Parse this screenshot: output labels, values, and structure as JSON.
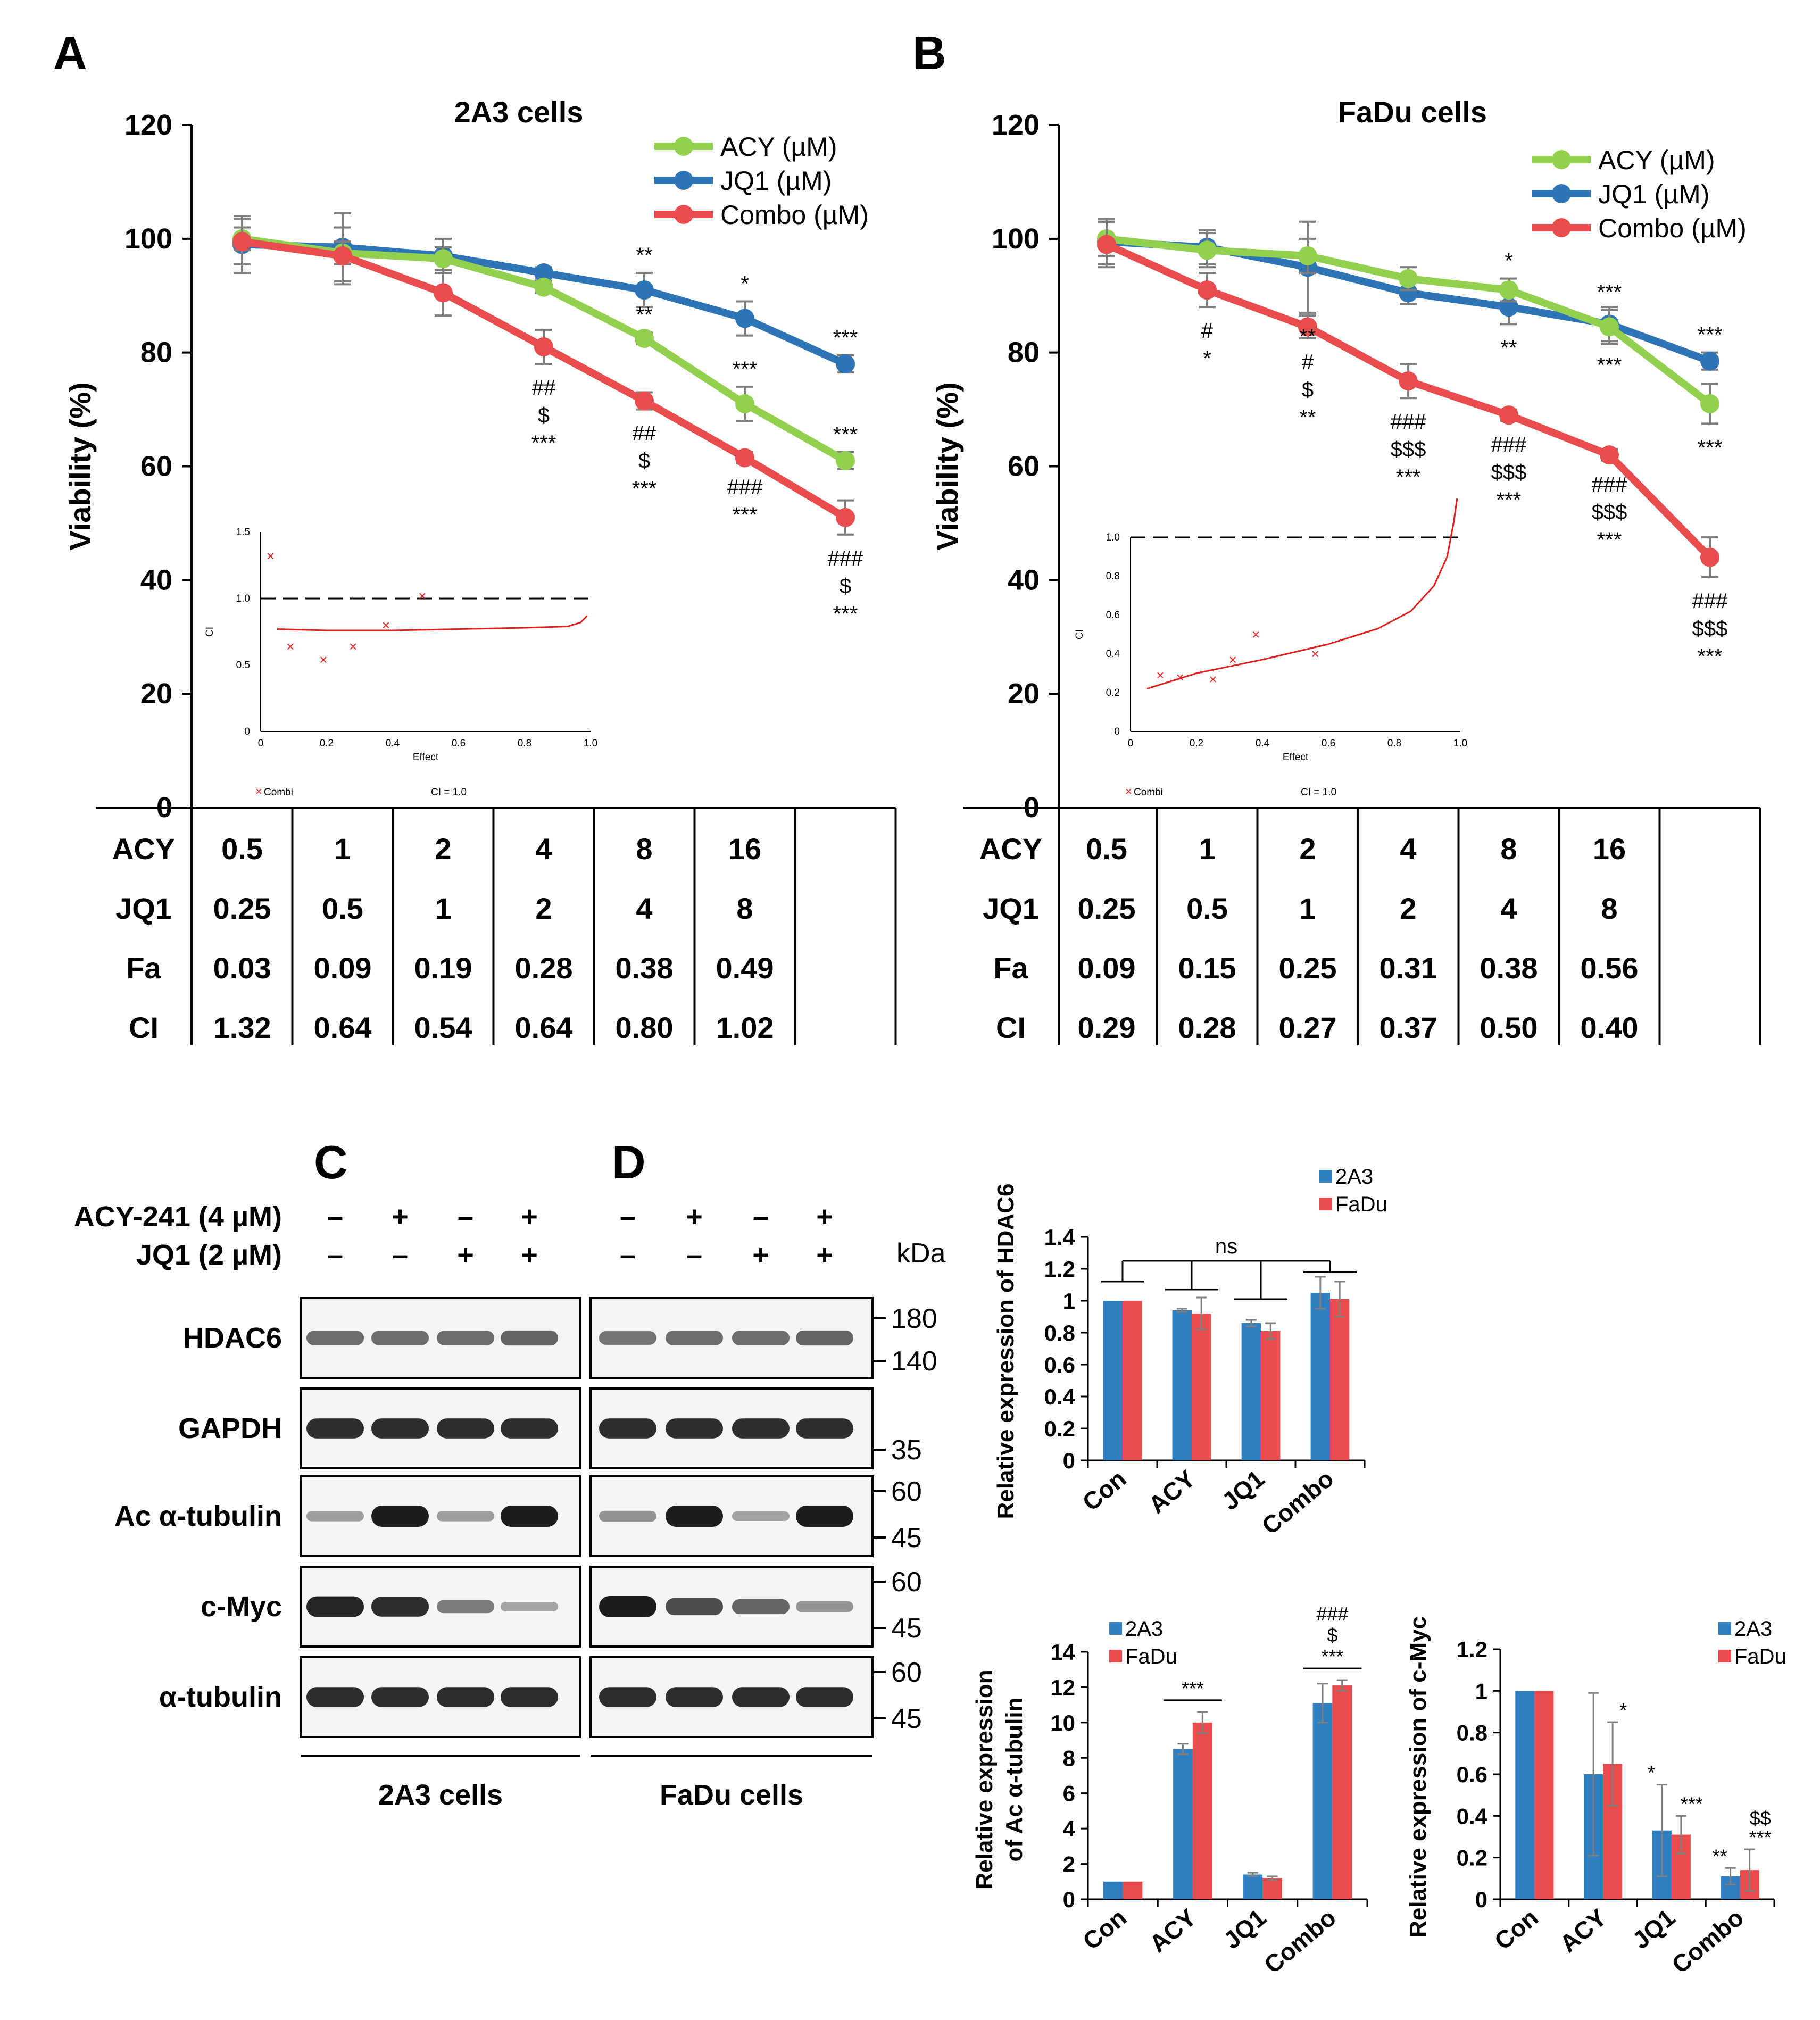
{
  "colors": {
    "acy": "#92d050",
    "jq1": "#2e75b6",
    "combo": "#e84c4c",
    "bar_a": "#2f7fc1",
    "bar_b": "#e84c4c",
    "axis": "#000000",
    "err": "#7f7f7f"
  },
  "panels": {
    "A": {
      "letter": "A"
    },
    "B": {
      "letter": "B"
    },
    "C": {
      "letter": "C"
    },
    "D": {
      "letter": "D"
    }
  },
  "chart_data": [
    {
      "id": "viability_2a3",
      "type": "line",
      "title": "2A3  cells",
      "ylabel": "Viability (%)",
      "ylim": [
        0,
        120
      ],
      "yticks": [
        0,
        20,
        40,
        60,
        80,
        100,
        120
      ],
      "series": [
        {
          "name": "ACY (µM)",
          "key": "acy",
          "values": [
            100.0,
            97.5,
            96.5,
            91.5,
            82.5,
            71.0,
            61.0
          ],
          "err": [
            2,
            2,
            2,
            1,
            1,
            3,
            1.5
          ]
        },
        {
          "name": "JQ1 (µM)",
          "key": "jq1",
          "values": [
            99.0,
            98.5,
            97.0,
            94.0,
            91.0,
            86.0,
            78.0
          ],
          "err": [
            5,
            6,
            3,
            1,
            3,
            3,
            1.5
          ]
        },
        {
          "name": "Combo (µM)",
          "key": "combo",
          "values": [
            99.5,
            97.0,
            90.5,
            81.0,
            71.5,
            61.5,
            51.0
          ],
          "err": [
            4,
            5,
            4,
            3,
            1.5,
            1,
            3
          ]
        }
      ],
      "annotations": [
        {
          "i": 4,
          "anchor": "jq1",
          "lines": [
            "**"
          ]
        },
        {
          "i": 5,
          "anchor": "jq1",
          "lines": [
            "*"
          ]
        },
        {
          "i": 6,
          "anchor": "jq1",
          "lines": [
            "***"
          ]
        },
        {
          "i": 4,
          "anchor": "acy",
          "lines": [
            "**"
          ]
        },
        {
          "i": 5,
          "anchor": "acy",
          "lines": [
            "***"
          ]
        },
        {
          "i": 6,
          "anchor": "acy",
          "lines": [
            "***"
          ]
        },
        {
          "i": 3,
          "anchor": "combo_below",
          "lines": [
            "##",
            "$",
            "***"
          ]
        },
        {
          "i": 4,
          "anchor": "combo_below",
          "lines": [
            "##",
            "$",
            "***"
          ]
        },
        {
          "i": 5,
          "anchor": "combo_below",
          "lines": [
            "###",
            "***"
          ]
        },
        {
          "i": 6,
          "anchor": "combo_below",
          "lines": [
            "###",
            "$",
            "***"
          ]
        }
      ],
      "inset": {
        "xlabel": "Effect",
        "ylabel": "CI",
        "xticks": [
          "0",
          "0.2",
          "0.4",
          "0.6",
          "0.8",
          "1.0"
        ],
        "yticks": [
          "0",
          "0.5",
          "1.0",
          "1.5"
        ],
        "ymax": 1.5,
        "ref_line": 1.0,
        "points": [
          [
            0.03,
            1.32
          ],
          [
            0.09,
            0.64
          ],
          [
            0.19,
            0.54
          ],
          [
            0.28,
            0.64
          ],
          [
            0.38,
            0.8
          ],
          [
            0.49,
            1.02
          ]
        ],
        "curve": [
          [
            0.05,
            0.77
          ],
          [
            0.2,
            0.76
          ],
          [
            0.4,
            0.76
          ],
          [
            0.6,
            0.77
          ],
          [
            0.8,
            0.78
          ],
          [
            0.93,
            0.79
          ],
          [
            0.97,
            0.82
          ],
          [
            0.99,
            0.87
          ]
        ],
        "legend_combi": "Combi",
        "legend_ci": "CI = 1.0"
      },
      "table": {
        "rows": [
          {
            "label": "ACY",
            "values": [
              "0.5",
              "1",
              "2",
              "4",
              "8",
              "16"
            ]
          },
          {
            "label": "JQ1",
            "values": [
              "0.25",
              "0.5",
              "1",
              "2",
              "4",
              "8"
            ]
          },
          {
            "label": "Fa",
            "values": [
              "0.03",
              "0.09",
              "0.19",
              "0.28",
              "0.38",
              "0.49"
            ]
          },
          {
            "label": "CI",
            "values": [
              "1.32",
              "0.64",
              "0.54",
              "0.64",
              "0.80",
              "1.02"
            ]
          }
        ]
      }
    },
    {
      "id": "viability_fadu",
      "type": "line",
      "title": "FaDu cells",
      "ylabel": "Viability (%)",
      "ylim": [
        0,
        120
      ],
      "yticks": [
        0,
        20,
        40,
        60,
        80,
        100,
        120
      ],
      "series": [
        {
          "name": "ACY (µM)",
          "key": "acy",
          "values": [
            100.0,
            98.0,
            97.0,
            93.0,
            91.0,
            84.5,
            71.0
          ],
          "err": [
            3,
            3,
            3,
            2,
            2,
            3,
            3.5
          ]
        },
        {
          "name": "JQ1 (µM)",
          "key": "jq1",
          "values": [
            99.5,
            98.5,
            95.0,
            90.5,
            88.0,
            85.0,
            78.5
          ],
          "err": [
            4,
            3,
            8,
            2,
            3,
            3,
            1.5
          ]
        },
        {
          "name": "Combo (µM)",
          "key": "combo",
          "values": [
            99.0,
            91.0,
            84.5,
            75.0,
            69.0,
            62.0,
            44.0
          ],
          "err": [
            4,
            3,
            2,
            3,
            1,
            1,
            3.5
          ]
        }
      ],
      "annotations": [
        {
          "i": 4,
          "anchor": "acy",
          "lines": [
            "*"
          ]
        },
        {
          "i": 5,
          "anchor": "acy",
          "lines": [
            "***"
          ]
        },
        {
          "i": 2,
          "anchor": "jq1_below",
          "lines": [
            "**"
          ]
        },
        {
          "i": 4,
          "anchor": "jq1_below",
          "lines": [
            "**"
          ]
        },
        {
          "i": 5,
          "anchor": "jq1_below",
          "lines": [
            "***"
          ]
        },
        {
          "i": 6,
          "anchor": "jq1",
          "lines": [
            "***"
          ]
        },
        {
          "i": 6,
          "anchor": "acy_below",
          "lines": [
            "***"
          ]
        },
        {
          "i": 1,
          "anchor": "combo_below",
          "lines": [
            "#",
            "*"
          ]
        },
        {
          "i": 2,
          "anchor": "combo_below",
          "lines": [
            "#",
            "$",
            "**"
          ]
        },
        {
          "i": 3,
          "anchor": "combo_below",
          "lines": [
            "###",
            "$$$",
            "***"
          ]
        },
        {
          "i": 4,
          "anchor": "combo_below",
          "lines": [
            "###",
            "$$$",
            "***"
          ]
        },
        {
          "i": 5,
          "anchor": "combo_below",
          "lines": [
            "###",
            "$$$",
            "***"
          ]
        },
        {
          "i": 6,
          "anchor": "combo_below",
          "lines": [
            "###",
            "$$$",
            "***"
          ]
        }
      ],
      "inset": {
        "xlabel": "Effect",
        "ylabel": "CI",
        "xticks": [
          "0",
          "0.2",
          "0.4",
          "0.6",
          "0.8",
          "1.0"
        ],
        "yticks": [
          "0",
          "0.2",
          "0.4",
          "0.6",
          "0.8",
          "1.0"
        ],
        "ymax": 1.0,
        "ref_line": 1.0,
        "points": [
          [
            0.09,
            0.29
          ],
          [
            0.15,
            0.28
          ],
          [
            0.25,
            0.27
          ],
          [
            0.31,
            0.37
          ],
          [
            0.38,
            0.5
          ],
          [
            0.56,
            0.4
          ]
        ],
        "curve": [
          [
            0.05,
            0.22
          ],
          [
            0.2,
            0.3
          ],
          [
            0.4,
            0.37
          ],
          [
            0.6,
            0.45
          ],
          [
            0.75,
            0.53
          ],
          [
            0.85,
            0.62
          ],
          [
            0.92,
            0.75
          ],
          [
            0.96,
            0.9
          ],
          [
            0.98,
            1.08
          ],
          [
            0.99,
            1.2
          ]
        ],
        "legend_combi": "Combi",
        "legend_ci": "CI = 1.0"
      },
      "table": {
        "rows": [
          {
            "label": "ACY",
            "values": [
              "0.5",
              "1",
              "2",
              "4",
              "8",
              "16"
            ]
          },
          {
            "label": "JQ1",
            "values": [
              "0.25",
              "0.5",
              "1",
              "2",
              "4",
              "8"
            ]
          },
          {
            "label": "Fa",
            "values": [
              "0.09",
              "0.15",
              "0.25",
              "0.31",
              "0.38",
              "0.56"
            ]
          },
          {
            "label": "CI",
            "values": [
              "0.29",
              "0.28",
              "0.27",
              "0.37",
              "0.50",
              "0.40"
            ]
          }
        ]
      }
    },
    {
      "id": "hdac6_bar",
      "type": "bar",
      "ylabel": "Relative expression of HDAC6",
      "ylim": [
        0,
        1.4
      ],
      "yticks": [
        "0",
        "0.2",
        "0.4",
        "0.6",
        "0.8",
        "1",
        "1.2",
        "1.4"
      ],
      "categories": [
        "Con",
        "ACY",
        "JQ1",
        "Combo"
      ],
      "series": [
        {
          "name": "2A3",
          "values": [
            1.0,
            0.94,
            0.86,
            1.05
          ],
          "err": [
            0.0,
            0.01,
            0.02,
            0.1
          ]
        },
        {
          "name": "FaDu",
          "values": [
            1.0,
            0.92,
            0.81,
            1.01
          ],
          "err": [
            0.0,
            0.1,
            0.05,
            0.11
          ]
        }
      ],
      "bracket_label": "ns"
    },
    {
      "id": "actub_bar",
      "type": "bar",
      "ylabel_lines": [
        "Relative expression",
        "of Ac α-tubulin"
      ],
      "ylim": [
        0,
        14
      ],
      "yticks": [
        "0",
        "2",
        "4",
        "6",
        "8",
        "10",
        "12",
        "14"
      ],
      "categories": [
        "Con",
        "ACY",
        "JQ1",
        "Combo"
      ],
      "series": [
        {
          "name": "2A3",
          "values": [
            1.0,
            8.5,
            1.4,
            11.1
          ],
          "err": [
            0.0,
            0.3,
            0.1,
            1.1
          ]
        },
        {
          "name": "FaDu",
          "values": [
            1.0,
            10.0,
            1.2,
            12.1
          ],
          "err": [
            0.0,
            0.6,
            0.1,
            0.3
          ]
        }
      ],
      "sig": {
        "ACY": [
          "***"
        ],
        "Combo": [
          "###",
          "$",
          "***"
        ]
      }
    },
    {
      "id": "cmyc_bar",
      "type": "bar",
      "ylabel": "Relative expression of c-Myc",
      "ylim": [
        0,
        1.2
      ],
      "yticks": [
        "0",
        "0.2",
        "0.4",
        "0.6",
        "0.8",
        "1",
        "1.2"
      ],
      "categories": [
        "Con",
        "ACY",
        "JQ1",
        "Combo"
      ],
      "series": [
        {
          "name": "2A3",
          "values": [
            1.0,
            0.6,
            0.33,
            0.11
          ],
          "err": [
            0.0,
            0.39,
            0.22,
            0.04
          ]
        },
        {
          "name": "FaDu",
          "values": [
            1.0,
            0.65,
            0.31,
            0.14
          ],
          "err": [
            0.0,
            0.2,
            0.09,
            0.1
          ]
        }
      ],
      "sig_2a3": {
        "JQ1": [
          "*"
        ],
        "Combo": [
          "**"
        ]
      },
      "sig_fadu": {
        "ACY": [
          "*"
        ],
        "JQ1": [
          "***"
        ],
        "Combo": [
          "$$",
          "***"
        ]
      }
    }
  ],
  "western": {
    "treatments": [
      {
        "label": "ACY-241  (4 µM)",
        "marks": [
          "–",
          "+",
          "–",
          "+"
        ]
      },
      {
        "label": "JQ1 (2 µM)",
        "marks": [
          "–",
          "–",
          "+",
          "+"
        ]
      }
    ],
    "kda_label": "kDa",
    "rows": [
      {
        "name": "HDAC6",
        "markers": [
          "180",
          "140"
        ],
        "i2a3": [
          0.5,
          0.5,
          0.5,
          0.55
        ],
        "ifadu": [
          0.45,
          0.5,
          0.5,
          0.55
        ]
      },
      {
        "name": "GAPDH",
        "markers": [
          "35"
        ],
        "i2a3": [
          0.9,
          0.9,
          0.9,
          0.9
        ],
        "ifadu": [
          0.9,
          0.9,
          0.9,
          0.9
        ]
      },
      {
        "name": "Ac α-tubulin",
        "markers": [
          "60",
          "45"
        ],
        "i2a3": [
          0.2,
          1.0,
          0.2,
          1.0
        ],
        "ifadu": [
          0.25,
          1.0,
          0.15,
          1.0
        ]
      },
      {
        "name": "c-Myc",
        "markers": [
          "60",
          "45"
        ],
        "i2a3": [
          0.95,
          0.9,
          0.4,
          0.15
        ],
        "ifadu": [
          1.0,
          0.7,
          0.55,
          0.25
        ]
      },
      {
        "name": "α-tubulin",
        "markers": [
          "60",
          "45"
        ],
        "i2a3": [
          0.9,
          0.9,
          0.9,
          0.9
        ],
        "ifadu": [
          0.9,
          0.9,
          0.9,
          0.9
        ]
      }
    ],
    "group_2a3": "2A3 cells",
    "group_fadu": "FaDu cells"
  }
}
